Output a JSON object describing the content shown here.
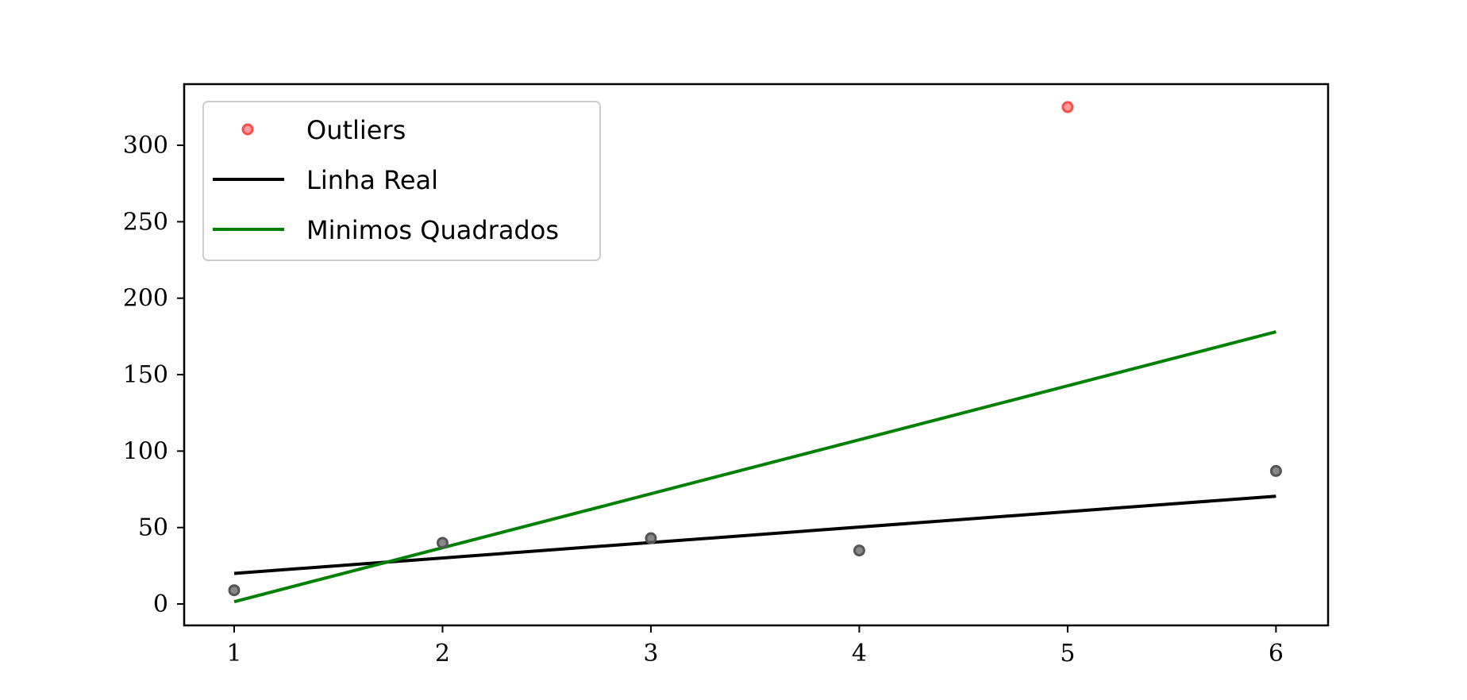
{
  "chart_data": {
    "type": "scatter",
    "title": "",
    "xlabel": "",
    "ylabel": "",
    "xlim": [
      0.76,
      6.25
    ],
    "ylim": [
      -14,
      340
    ],
    "xticks": [
      1,
      2,
      3,
      4,
      5,
      6
    ],
    "yticks": [
      0,
      50,
      100,
      150,
      200,
      250,
      300
    ],
    "grid": false,
    "legend_position": "top-left",
    "points": {
      "inliers": {
        "x": [
          1,
          2,
          3,
          4,
          6
        ],
        "y": [
          9,
          40,
          43,
          35,
          87
        ],
        "color": "#555555"
      },
      "outliers": {
        "name": "Outliers",
        "x": [
          5
        ],
        "y": [
          325
        ],
        "color": "#ff4d4d"
      }
    },
    "lines": [
      {
        "name": "Linha Real",
        "x": [
          1,
          6
        ],
        "y": [
          20,
          70.5
        ],
        "color": "#000000"
      },
      {
        "name": "Minimos Quadrados",
        "x": [
          1,
          6
        ],
        "y": [
          1.5,
          178
        ],
        "color": "#008000"
      }
    ],
    "legend": [
      "Outliers",
      "Linha Real",
      "Minimos Quadrados"
    ]
  }
}
